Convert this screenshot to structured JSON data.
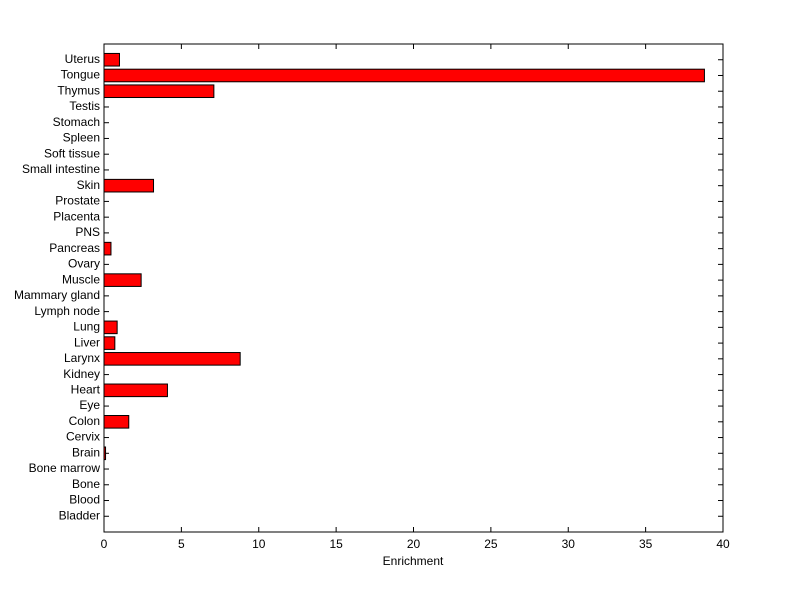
{
  "chart_data": {
    "type": "barh",
    "x_label": "Enrichment",
    "categories": [
      "Bladder",
      "Blood",
      "Bone",
      "Bone marrow",
      "Brain",
      "Cervix",
      "Colon",
      "Eye",
      "Heart",
      "Kidney",
      "Larynx",
      "Liver",
      "Lung",
      "Lymph node",
      "Mammary gland",
      "Muscle",
      "Ovary",
      "Pancreas",
      "PNS",
      "Placenta",
      "Prostate",
      "Skin",
      "Small intestine",
      "Soft tissue",
      "Spleen",
      "Stomach",
      "Testis",
      "Thymus",
      "Tongue",
      "Uterus"
    ],
    "values": [
      0,
      0,
      0,
      0,
      0.1,
      0,
      1.6,
      0,
      4.1,
      0,
      8.8,
      0.7,
      0.85,
      0,
      0,
      2.4,
      0,
      0.45,
      0,
      0,
      0,
      3.2,
      0,
      0,
      0,
      0,
      0,
      7.1,
      38.8,
      1.0
    ],
    "color": "#ff0000",
    "xlim": [
      0,
      40
    ],
    "xticks": [
      0,
      5,
      10,
      15,
      20,
      25,
      30,
      35,
      40
    ]
  }
}
